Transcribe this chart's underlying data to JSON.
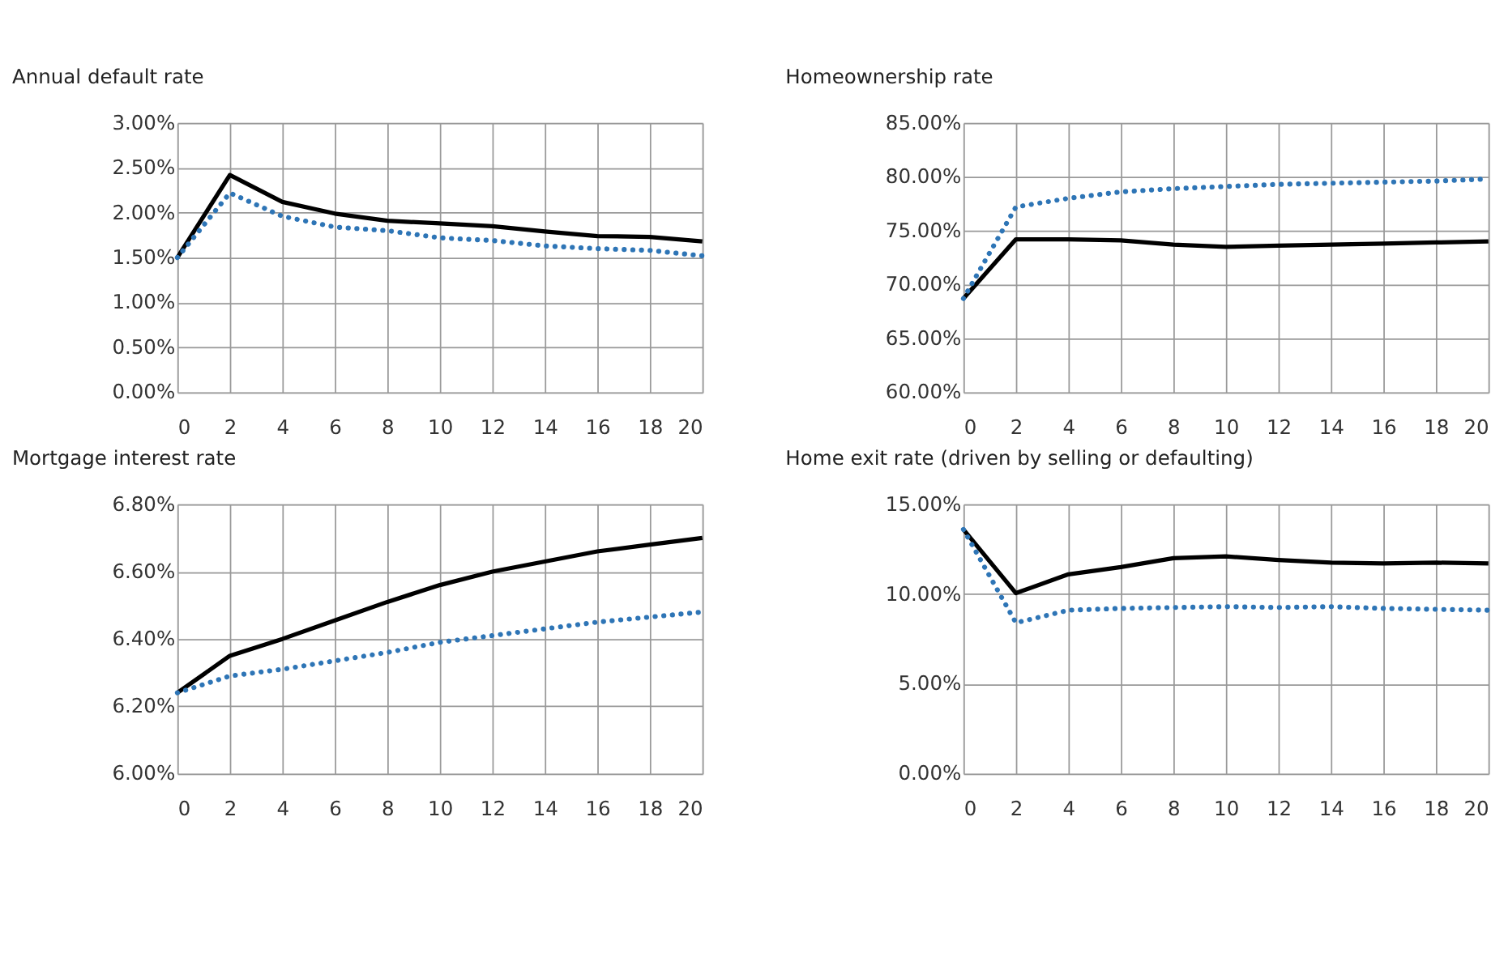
{
  "chart_data": [
    {
      "type": "line",
      "title": "Annual default rate",
      "x": [
        0,
        2,
        4,
        6,
        8,
        10,
        12,
        14,
        16,
        18,
        20
      ],
      "xlim": [
        0,
        20
      ],
      "xticks": [
        0,
        2,
        4,
        6,
        8,
        10,
        12,
        14,
        16,
        18,
        20
      ],
      "ylim": [
        0,
        3
      ],
      "yticks": [
        {
          "value": 0,
          "label": "0.00%"
        },
        {
          "value": 0.5,
          "label": "0.50%"
        },
        {
          "value": 1,
          "label": "1.00%"
        },
        {
          "value": 1.5,
          "label": "1.50%"
        },
        {
          "value": 2,
          "label": "2.00%"
        },
        {
          "value": 2.5,
          "label": "2.50%"
        },
        {
          "value": 3,
          "label": "3.00%"
        }
      ],
      "grid": true,
      "series": [
        {
          "color": "#000000",
          "line_style": "solid",
          "values": [
            1.5,
            2.42,
            2.12,
            1.99,
            1.91,
            1.88,
            1.85,
            1.79,
            1.74,
            1.73,
            1.68
          ]
        },
        {
          "color": "#2e75b6",
          "line_style": "dotted",
          "values": [
            1.5,
            2.22,
            1.96,
            1.84,
            1.8,
            1.72,
            1.69,
            1.63,
            1.6,
            1.58,
            1.52
          ]
        }
      ]
    },
    {
      "type": "line",
      "title": "Homeownership rate",
      "x": [
        0,
        2,
        4,
        6,
        8,
        10,
        12,
        14,
        16,
        18,
        20
      ],
      "xlim": [
        0,
        20
      ],
      "xticks": [
        0,
        2,
        4,
        6,
        8,
        10,
        12,
        14,
        16,
        18,
        20
      ],
      "ylim": [
        60,
        85
      ],
      "yticks": [
        {
          "value": 60,
          "label": "60.00%"
        },
        {
          "value": 65,
          "label": "65.00%"
        },
        {
          "value": 70,
          "label": "70.00%"
        },
        {
          "value": 75,
          "label": "75.00%"
        },
        {
          "value": 80,
          "label": "80.00%"
        },
        {
          "value": 85,
          "label": "85.00%"
        }
      ],
      "grid": true,
      "series": [
        {
          "color": "#000000",
          "line_style": "solid",
          "values": [
            68.7,
            74.2,
            74.2,
            74.1,
            73.7,
            73.5,
            73.6,
            73.7,
            73.8,
            73.9,
            74.0
          ]
        },
        {
          "color": "#2e75b6",
          "line_style": "dotted",
          "values": [
            68.7,
            77.2,
            78.0,
            78.6,
            78.9,
            79.1,
            79.3,
            79.4,
            79.5,
            79.6,
            79.8
          ]
        }
      ]
    },
    {
      "type": "line",
      "title": "Mortgage interest rate",
      "x": [
        0,
        2,
        4,
        6,
        8,
        10,
        12,
        14,
        16,
        18,
        20
      ],
      "xlim": [
        0,
        20
      ],
      "xticks": [
        0,
        2,
        4,
        6,
        8,
        10,
        12,
        14,
        16,
        18,
        20
      ],
      "ylim": [
        6.0,
        6.8
      ],
      "yticks": [
        {
          "value": 6.0,
          "label": "6.00%"
        },
        {
          "value": 6.2,
          "label": "6.20%"
        },
        {
          "value": 6.4,
          "label": "6.40%"
        },
        {
          "value": 6.6,
          "label": "6.60%"
        },
        {
          "value": 6.8,
          "label": "6.80%"
        }
      ],
      "grid": true,
      "series": [
        {
          "color": "#000000",
          "line_style": "solid",
          "values": [
            6.24,
            6.35,
            6.4,
            6.455,
            6.51,
            6.56,
            6.6,
            6.63,
            6.66,
            6.68,
            6.7
          ]
        },
        {
          "color": "#2e75b6",
          "line_style": "dotted",
          "values": [
            6.24,
            6.29,
            6.31,
            6.335,
            6.36,
            6.39,
            6.41,
            6.43,
            6.45,
            6.465,
            6.48
          ]
        }
      ]
    },
    {
      "type": "line",
      "title": "Home exit rate (driven by selling or defaulting)",
      "x": [
        0,
        2,
        4,
        6,
        8,
        10,
        12,
        14,
        16,
        18,
        20
      ],
      "xlim": [
        0,
        20
      ],
      "xticks": [
        0,
        2,
        4,
        6,
        8,
        10,
        12,
        14,
        16,
        18,
        20
      ],
      "ylim": [
        0,
        15
      ],
      "yticks": [
        {
          "value": 0,
          "label": "0.00%"
        },
        {
          "value": 5,
          "label": "5.00%"
        },
        {
          "value": 10,
          "label": "10.00%"
        },
        {
          "value": 15,
          "label": "15.00%"
        }
      ],
      "grid": true,
      "series": [
        {
          "color": "#000000",
          "line_style": "solid",
          "values": [
            13.6,
            10.05,
            11.1,
            11.5,
            12.0,
            12.1,
            11.9,
            11.75,
            11.7,
            11.75,
            11.7
          ]
        },
        {
          "color": "#2e75b6",
          "line_style": "dotted",
          "values": [
            13.6,
            8.4,
            9.1,
            9.2,
            9.25,
            9.3,
            9.25,
            9.3,
            9.2,
            9.15,
            9.1
          ]
        }
      ]
    }
  ]
}
